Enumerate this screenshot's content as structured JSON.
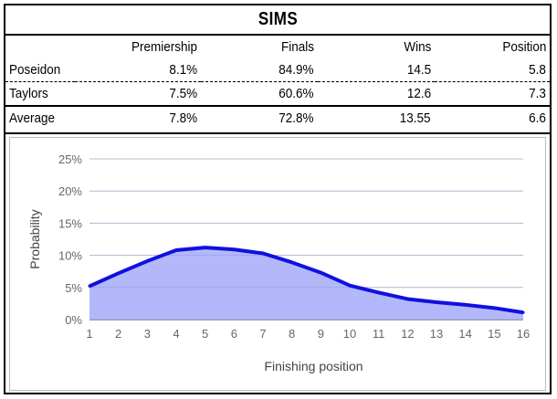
{
  "title": "SIMS",
  "table": {
    "headers": [
      "",
      "Premiership",
      "Finals",
      "Wins",
      "Position"
    ],
    "rows": [
      {
        "name": "Poseidon",
        "premiership": "8.1%",
        "finals": "84.9%",
        "wins": "14.5",
        "position": "5.8"
      },
      {
        "name": "Taylors",
        "premiership": "7.5%",
        "finals": "60.6%",
        "wins": "12.6",
        "position": "7.3"
      },
      {
        "name": "Average",
        "premiership": "7.8%",
        "finals": "72.8%",
        "wins": "13.55",
        "position": "6.6"
      }
    ]
  },
  "colors": {
    "line": "#1010e0",
    "fill": "#aab0f8",
    "grid": "#cccccc",
    "axis": "#333333"
  },
  "chart_data": {
    "type": "area",
    "xlabel": "Finishing position",
    "ylabel": "Probability",
    "x": [
      1,
      2,
      3,
      4,
      5,
      6,
      7,
      8,
      9,
      10,
      11,
      12,
      13,
      14,
      15,
      16
    ],
    "values": [
      5.2,
      7.2,
      9.1,
      10.8,
      11.2,
      10.9,
      10.3,
      8.9,
      7.3,
      5.3,
      4.2,
      3.2,
      2.7,
      2.3,
      1.8,
      1.1
    ],
    "xticks": [
      "1",
      "2",
      "3",
      "4",
      "5",
      "6",
      "7",
      "8",
      "9",
      "10",
      "11",
      "12",
      "13",
      "14",
      "15",
      "16"
    ],
    "yticks": [
      "0%",
      "5%",
      "10%",
      "15%",
      "20%",
      "25%"
    ],
    "ylim": [
      0,
      25
    ],
    "xlim": [
      1,
      16
    ],
    "grid": true,
    "legend": "none"
  }
}
